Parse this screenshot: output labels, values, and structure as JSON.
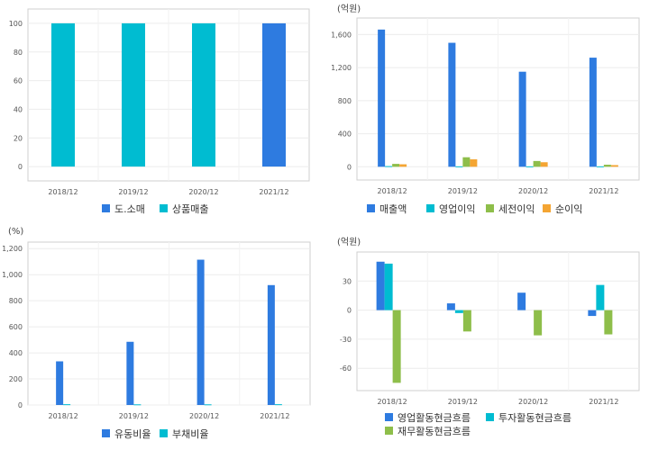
{
  "chart_data": [
    {
      "type": "bar",
      "unit": "",
      "categories": [
        "2018/12",
        "2019/12",
        "2020/12",
        "2021/12"
      ],
      "series": [
        {
          "name": "도.소매",
          "color": "#2e7be0",
          "values": [
            0,
            0,
            0,
            100
          ]
        },
        {
          "name": "상품매출",
          "color": "#00bcd1",
          "values": [
            100,
            100,
            100,
            0
          ]
        }
      ],
      "stacked": true,
      "ylim": [
        -10,
        110
      ],
      "yticks": [
        0,
        20,
        40,
        60,
        80,
        100
      ],
      "ytick_labels": [
        "0",
        "20",
        "40",
        "60",
        "80",
        "100"
      ],
      "legend_position": "bottom",
      "grid": true
    },
    {
      "type": "bar",
      "unit": "(억원)",
      "categories": [
        "2018/12",
        "2019/12",
        "2020/12",
        "2021/12"
      ],
      "series": [
        {
          "name": "매출액",
          "color": "#2e7be0",
          "values": [
            1660,
            1500,
            1150,
            1320
          ]
        },
        {
          "name": "영업이익",
          "color": "#00bcd1",
          "values": [
            8,
            5,
            5,
            5
          ]
        },
        {
          "name": "세전이익",
          "color": "#8ebe4a",
          "values": [
            35,
            115,
            70,
            25
          ]
        },
        {
          "name": "순이익",
          "color": "#f4a533",
          "values": [
            30,
            90,
            55,
            20
          ]
        }
      ],
      "stacked": false,
      "ylim": [
        -160,
        1800
      ],
      "yticks": [
        0,
        400,
        800,
        1200,
        1600
      ],
      "ytick_labels": [
        "0",
        "400",
        "800",
        "1,200",
        "1,600"
      ],
      "legend_position": "bottom",
      "grid": true
    },
    {
      "type": "bar",
      "unit": "(%)",
      "categories": [
        "2018/12",
        "2019/12",
        "2020/12",
        "2021/12"
      ],
      "series": [
        {
          "name": "유동비율",
          "color": "#2e7be0",
          "values": [
            335,
            485,
            1115,
            920
          ]
        },
        {
          "name": "부채비율",
          "color": "#00bcd1",
          "values": [
            6,
            5,
            5,
            6
          ]
        }
      ],
      "stacked": false,
      "ylim": [
        0,
        1250
      ],
      "yticks": [
        0,
        200,
        400,
        600,
        800,
        1000,
        1200
      ],
      "ytick_labels": [
        "0",
        "200",
        "400",
        "600",
        "800",
        "1,000",
        "1,200"
      ],
      "legend_position": "bottom",
      "grid": true
    },
    {
      "type": "bar",
      "unit": "(억원)",
      "categories": [
        "2018/12",
        "2019/12",
        "2020/12",
        "2021/12"
      ],
      "series": [
        {
          "name": "영업활동현금흐름",
          "color": "#2e7be0",
          "values": [
            50,
            7,
            18,
            -6
          ]
        },
        {
          "name": "투자활동현금흐름",
          "color": "#00bcd1",
          "values": [
            48,
            -3,
            0,
            26
          ]
        },
        {
          "name": "재무활동현금흐름",
          "color": "#8ebe4a",
          "values": [
            -75,
            -22,
            -26,
            -25
          ]
        }
      ],
      "stacked": false,
      "ylim": [
        -83,
        60
      ],
      "yticks": [
        -60,
        -30,
        0,
        30
      ],
      "ytick_labels": [
        "-60",
        "-30",
        "0",
        "30"
      ],
      "legend_position": "bottom",
      "grid": true
    }
  ]
}
